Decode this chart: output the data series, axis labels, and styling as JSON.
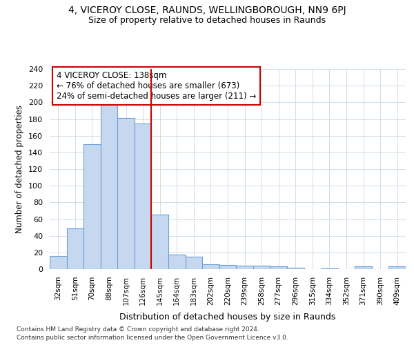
{
  "title1": "4, VICEROY CLOSE, RAUNDS, WELLINGBOROUGH, NN9 6PJ",
  "title2": "Size of property relative to detached houses in Raunds",
  "xlabel": "Distribution of detached houses by size in Raunds",
  "ylabel": "Number of detached properties",
  "categories": [
    "32sqm",
    "51sqm",
    "70sqm",
    "88sqm",
    "107sqm",
    "126sqm",
    "145sqm",
    "164sqm",
    "183sqm",
    "202sqm",
    "220sqm",
    "239sqm",
    "258sqm",
    "277sqm",
    "296sqm",
    "315sqm",
    "334sqm",
    "352sqm",
    "371sqm",
    "390sqm",
    "409sqm"
  ],
  "values": [
    16,
    49,
    150,
    202,
    181,
    175,
    65,
    17,
    15,
    6,
    5,
    4,
    4,
    3,
    2,
    0,
    1,
    0,
    3,
    0,
    3
  ],
  "bar_color": "#c5d8f0",
  "bar_edge_color": "#6a9fd8",
  "vline_color": "#cc0000",
  "annotation_text": "4 VICEROY CLOSE: 138sqm\n← 76% of detached houses are smaller (673)\n24% of semi-detached houses are larger (211) →",
  "annotation_box_color": "#ffffff",
  "annotation_box_edge": "#cc0000",
  "grid_color": "#d0dce8",
  "background_color": "#ffffff",
  "ylim": [
    0,
    240
  ],
  "yticks": [
    0,
    20,
    40,
    60,
    80,
    100,
    120,
    140,
    160,
    180,
    200,
    220,
    240
  ],
  "footer1": "Contains HM Land Registry data © Crown copyright and database right 2024.",
  "footer2": "Contains public sector information licensed under the Open Government Licence v3.0."
}
